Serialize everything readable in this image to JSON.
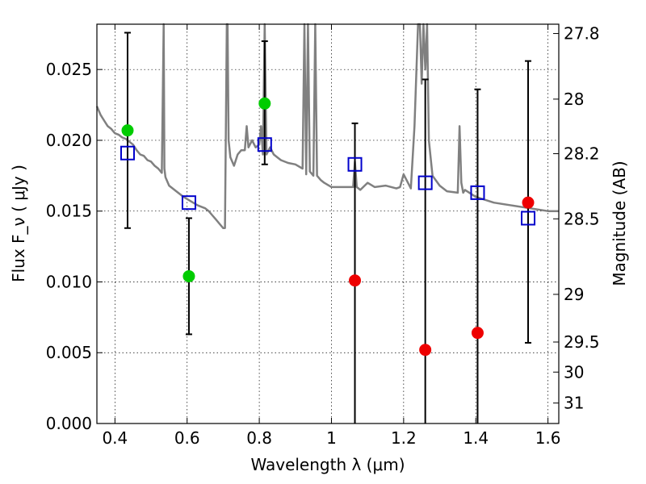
{
  "chart_data": {
    "type": "scatter",
    "xlabel": "Wavelength  λ (μm)",
    "ylabel": "Flux  F_ν  ( μJy )",
    "ylabel_right": "Magnitude (AB)",
    "xlim": [
      0.35,
      1.63
    ],
    "ylim": [
      0.0,
      0.0282
    ],
    "grid": true,
    "x_ticks": [
      0.4,
      0.6,
      0.8,
      1.0,
      1.2,
      1.4,
      1.6
    ],
    "x_tick_labels": [
      "0.4",
      "0.6",
      "0.8",
      "1",
      "1.2",
      "1.4",
      "1.6"
    ],
    "y_ticks": [
      0.0,
      0.005,
      0.01,
      0.015,
      0.02,
      0.025
    ],
    "y_tick_labels": [
      "0.000",
      "0.005",
      "0.010",
      "0.015",
      "0.020",
      "0.025"
    ],
    "right_ticks": [
      {
        "mag": 27.8,
        "label": "27.8"
      },
      {
        "mag": 28.0,
        "label": "28"
      },
      {
        "mag": 28.2,
        "label": "28.2"
      },
      {
        "mag": 28.5,
        "label": "28.5"
      },
      {
        "mag": 29.0,
        "label": "29"
      },
      {
        "mag": 29.5,
        "label": "29.5"
      },
      {
        "mag": 30.0,
        "label": "30"
      },
      {
        "mag": 31.0,
        "label": "31"
      }
    ],
    "series": [
      {
        "style": "spectrum-line",
        "color": "#808080",
        "x": [
          0.35,
          0.36,
          0.37,
          0.38,
          0.39,
          0.4,
          0.41,
          0.42,
          0.43,
          0.44,
          0.45,
          0.46,
          0.47,
          0.48,
          0.49,
          0.5,
          0.51,
          0.52,
          0.53,
          0.535,
          0.537,
          0.54,
          0.55,
          0.57,
          0.59,
          0.61,
          0.63,
          0.65,
          0.66,
          0.67,
          0.68,
          0.69,
          0.7,
          0.705,
          0.71,
          0.712,
          0.715,
          0.72,
          0.73,
          0.74,
          0.75,
          0.76,
          0.765,
          0.77,
          0.78,
          0.79,
          0.8,
          0.805,
          0.81,
          0.815,
          0.82,
          0.83,
          0.84,
          0.85,
          0.86,
          0.88,
          0.9,
          0.92,
          0.925,
          0.93,
          0.935,
          0.94,
          0.95,
          0.955,
          0.96,
          0.97,
          0.98,
          1.0,
          1.02,
          1.04,
          1.06,
          1.065,
          1.07,
          1.08,
          1.1,
          1.12,
          1.15,
          1.18,
          1.19,
          1.2,
          1.22,
          1.23,
          1.24,
          1.245,
          1.25,
          1.255,
          1.26,
          1.265,
          1.27,
          1.28,
          1.3,
          1.32,
          1.35,
          1.355,
          1.36,
          1.365,
          1.37,
          1.4,
          1.45,
          1.5,
          1.55,
          1.6,
          1.62,
          1.63
        ],
        "y": [
          0.0224,
          0.0218,
          0.0214,
          0.021,
          0.0208,
          0.0205,
          0.0204,
          0.0202,
          0.0201,
          0.0199,
          0.0197,
          0.0193,
          0.019,
          0.0189,
          0.0186,
          0.0185,
          0.0182,
          0.018,
          0.0177,
          0.0282,
          0.018,
          0.0174,
          0.0168,
          0.0164,
          0.016,
          0.0157,
          0.0154,
          0.0152,
          0.015,
          0.0147,
          0.0144,
          0.0141,
          0.0138,
          0.0138,
          0.0282,
          0.0282,
          0.02,
          0.0188,
          0.0182,
          0.019,
          0.0193,
          0.0193,
          0.021,
          0.0195,
          0.02,
          0.0195,
          0.0197,
          0.021,
          0.019,
          0.0282,
          0.019,
          0.0195,
          0.019,
          0.0188,
          0.0186,
          0.0184,
          0.0183,
          0.018,
          0.0282,
          0.0176,
          0.0282,
          0.0178,
          0.0175,
          0.0282,
          0.0175,
          0.0172,
          0.017,
          0.0167,
          0.0167,
          0.0167,
          0.0167,
          0.0185,
          0.0167,
          0.0165,
          0.017,
          0.0167,
          0.0168,
          0.0166,
          0.0167,
          0.0176,
          0.0166,
          0.021,
          0.0282,
          0.0282,
          0.024,
          0.0282,
          0.025,
          0.0282,
          0.02,
          0.0175,
          0.0168,
          0.0164,
          0.0163,
          0.021,
          0.017,
          0.0163,
          0.0165,
          0.016,
          0.0156,
          0.0154,
          0.0152,
          0.015,
          0.015,
          0.015
        ]
      },
      {
        "style": "open-square",
        "color": "#0000cc",
        "points": [
          {
            "x": 0.435,
            "y": 0.0191,
            "yerr_low": 0.0138,
            "yerr_high": 0.0276
          },
          {
            "x": 0.605,
            "y": 0.0156,
            "yerr_low": 0.0063,
            "yerr_high": 0.0145
          },
          {
            "x": 0.815,
            "y": 0.0197,
            "yerr_low": 0.0183,
            "yerr_high": 0.027
          },
          {
            "x": 1.065,
            "y": 0.0183,
            "yerr_low": 0.0,
            "yerr_high": 0.0212
          },
          {
            "x": 1.26,
            "y": 0.017,
            "yerr_low": 0.0,
            "yerr_high": 0.0243
          },
          {
            "x": 1.405,
            "y": 0.0163,
            "yerr_low": 0.0,
            "yerr_high": 0.0236
          },
          {
            "x": 1.545,
            "y": 0.0145,
            "yerr_low": 0.0057,
            "yerr_high": 0.0256
          }
        ]
      },
      {
        "style": "filled-circle",
        "color": "#00cc00",
        "points": [
          {
            "x": 0.435,
            "y": 0.0207
          },
          {
            "x": 0.605,
            "y": 0.0104
          },
          {
            "x": 0.815,
            "y": 0.0226
          }
        ]
      },
      {
        "style": "filled-circle",
        "color": "#ee0000",
        "points": [
          {
            "x": 1.065,
            "y": 0.0101
          },
          {
            "x": 1.26,
            "y": 0.0052
          },
          {
            "x": 1.405,
            "y": 0.0064
          },
          {
            "x": 1.545,
            "y": 0.0156
          }
        ]
      }
    ]
  }
}
